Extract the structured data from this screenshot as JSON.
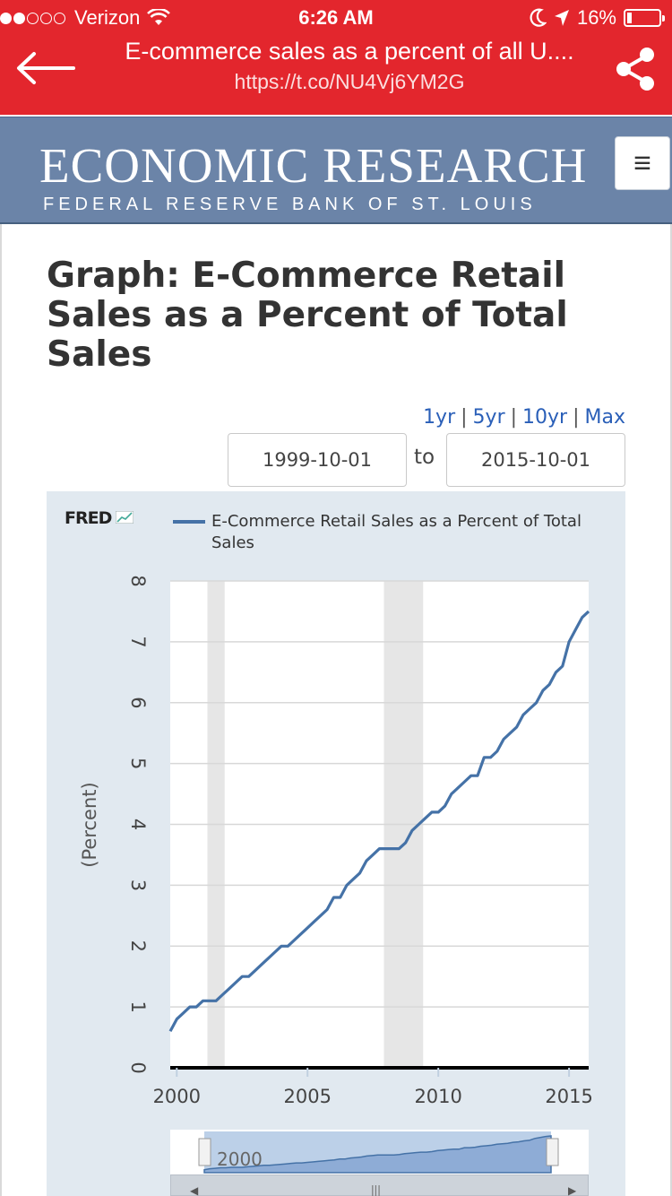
{
  "status_bar": {
    "carrier": "Verizon",
    "time": "6:26 AM",
    "battery": "16%"
  },
  "app_bar": {
    "title": "E-commerce sales as a percent of all U....",
    "url": "https://t.co/NU4Vj6YM2G",
    "back_icon": "arrow-left-icon",
    "share_icon": "share-icon",
    "color": "#e3262d"
  },
  "site_header": {
    "brand": "ECONOMIC RESEARCH",
    "subtitle": "FEDERAL RESERVE BANK OF ST. LOUIS",
    "menu_icon": "≡",
    "color": "#6b84a8"
  },
  "page": {
    "title": "Graph: E-Commerce Retail Sales as a Percent of Total Sales"
  },
  "range_links": [
    "1yr",
    "5yr",
    "10yr",
    "Max"
  ],
  "date_range": {
    "start": "1999-10-01",
    "to_label": "to",
    "end": "2015-10-01"
  },
  "chart_data": {
    "type": "line",
    "brand": "FRED",
    "legend": [
      "E-Commerce Retail Sales as a Percent of Total Sales"
    ],
    "ylabel": "(Percent)",
    "ylim": [
      0,
      8
    ],
    "yticks": [
      0,
      1,
      2,
      3,
      4,
      5,
      6,
      7,
      8
    ],
    "xlim": [
      1999.75,
      2015.75
    ],
    "xticks": [
      2000,
      2005,
      2010,
      2015
    ],
    "grid": true,
    "line_color": "#4572a7",
    "recessions": [
      [
        2001.17,
        2001.83
      ],
      [
        2007.92,
        2009.42
      ]
    ],
    "navigator_label": "2000",
    "series": [
      {
        "name": "E-Commerce Retail Sales as a Percent of Total Sales",
        "x": [
          1999.75,
          2000.0,
          2000.25,
          2000.5,
          2000.75,
          2001.0,
          2001.25,
          2001.5,
          2001.75,
          2002.0,
          2002.25,
          2002.5,
          2002.75,
          2003.0,
          2003.25,
          2003.5,
          2003.75,
          2004.0,
          2004.25,
          2004.5,
          2004.75,
          2005.0,
          2005.25,
          2005.5,
          2005.75,
          2006.0,
          2006.25,
          2006.5,
          2006.75,
          2007.0,
          2007.25,
          2007.5,
          2007.75,
          2008.0,
          2008.25,
          2008.5,
          2008.75,
          2009.0,
          2009.25,
          2009.5,
          2009.75,
          2010.0,
          2010.25,
          2010.5,
          2010.75,
          2011.0,
          2011.25,
          2011.5,
          2011.75,
          2012.0,
          2012.25,
          2012.5,
          2012.75,
          2013.0,
          2013.25,
          2013.5,
          2013.75,
          2014.0,
          2014.25,
          2014.5,
          2014.75,
          2015.0,
          2015.25,
          2015.5,
          2015.75
        ],
        "y": [
          0.6,
          0.8,
          0.9,
          1.0,
          1.0,
          1.1,
          1.1,
          1.1,
          1.2,
          1.3,
          1.4,
          1.5,
          1.5,
          1.6,
          1.7,
          1.8,
          1.9,
          2.0,
          2.0,
          2.1,
          2.2,
          2.3,
          2.4,
          2.5,
          2.6,
          2.8,
          2.8,
          3.0,
          3.1,
          3.2,
          3.4,
          3.5,
          3.6,
          3.6,
          3.6,
          3.6,
          3.7,
          3.9,
          4.0,
          4.1,
          4.2,
          4.2,
          4.3,
          4.5,
          4.6,
          4.7,
          4.8,
          4.8,
          5.1,
          5.1,
          5.2,
          5.4,
          5.5,
          5.6,
          5.8,
          5.9,
          6.0,
          6.2,
          6.3,
          6.5,
          6.6,
          7.0,
          7.2,
          7.4,
          7.5
        ]
      }
    ]
  }
}
